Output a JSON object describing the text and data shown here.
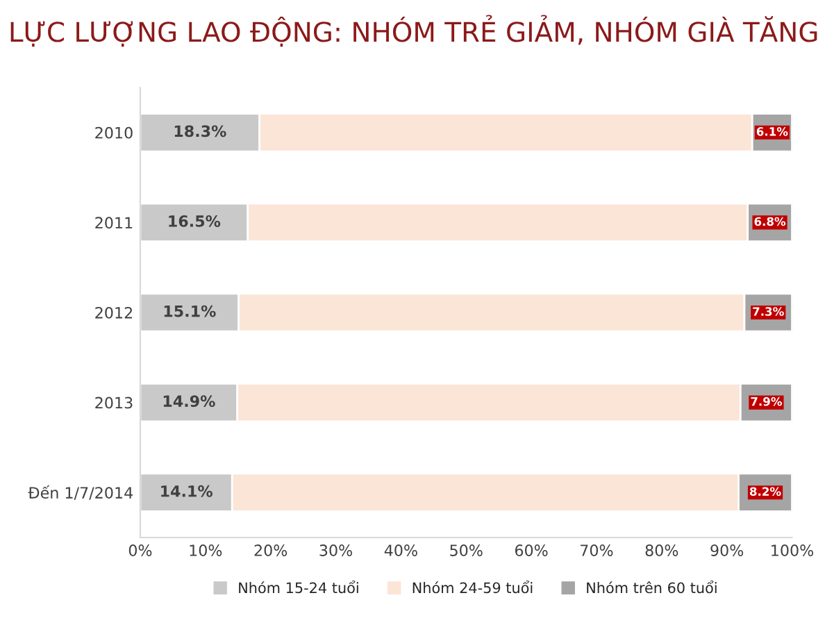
{
  "chart_data": {
    "type": "bar",
    "orientation": "horizontal",
    "stacked": true,
    "title": "LỰC LƯỢNG LAO ĐỘNG: NHÓM TRẺ GIẢM, NHÓM GIÀ TĂNG",
    "categories": [
      "2010",
      "2011",
      "2012",
      "2013",
      "Đến 1/7/2014"
    ],
    "series": [
      {
        "name": "Nhóm 15-24 tuổi",
        "color": "#c9c9c9",
        "values": [
          18.3,
          16.5,
          15.1,
          14.9,
          14.1
        ],
        "value_labels": [
          "18.3%",
          "16.5%",
          "15.1%",
          "14.9%",
          "14.1%"
        ]
      },
      {
        "name": "Nhóm 24-59 tuổi",
        "color": "#fbe5d6",
        "values": [
          75.6,
          76.7,
          77.6,
          77.2,
          77.7
        ]
      },
      {
        "name": "Nhóm trên 60 tuổi",
        "color": "#a5a5a5",
        "values": [
          6.1,
          6.8,
          7.3,
          7.9,
          8.2
        ],
        "value_labels": [
          "6.1%",
          "6.8%",
          "7.3%",
          "7.9%",
          "8.2%"
        ]
      }
    ],
    "xlim": [
      0,
      100
    ],
    "xticks": [
      {
        "value": 0,
        "label": "0%"
      },
      {
        "value": 10,
        "label": "10%"
      },
      {
        "value": 20,
        "label": "20%"
      },
      {
        "value": 30,
        "label": "30%"
      },
      {
        "value": 40,
        "label": "40%"
      },
      {
        "value": 50,
        "label": "50%"
      },
      {
        "value": 60,
        "label": "60%"
      },
      {
        "value": 70,
        "label": "70%"
      },
      {
        "value": 80,
        "label": "80%"
      },
      {
        "value": 90,
        "label": "90%"
      },
      {
        "value": 100,
        "label": "100%"
      }
    ],
    "legend": "bottom",
    "grid": false
  }
}
